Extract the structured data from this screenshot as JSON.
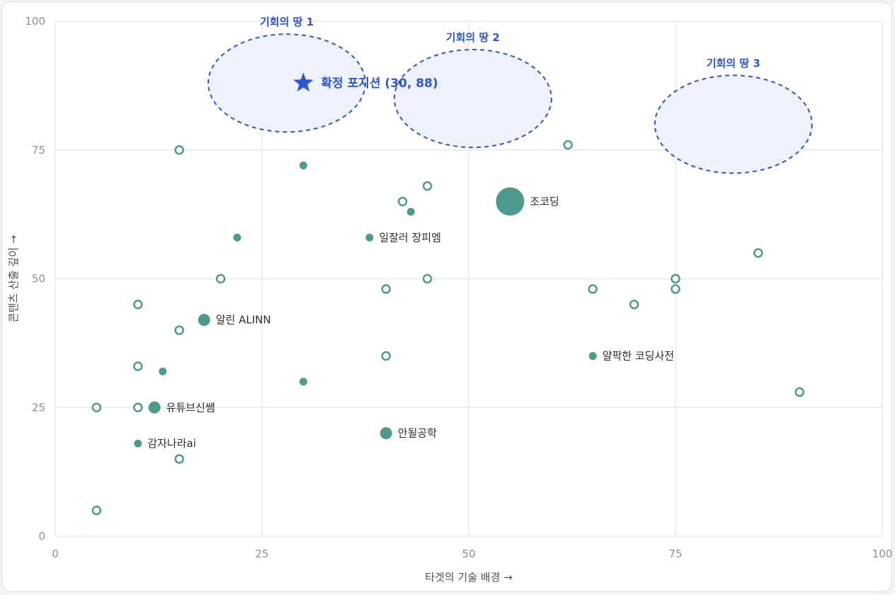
{
  "chart_data": {
    "type": "scatter",
    "title": "",
    "xlabel": "타겟의 기술 배경 →",
    "ylabel": "콘텐츠 산출 깊이 →",
    "xlim": [
      0,
      100
    ],
    "ylim": [
      0,
      100
    ],
    "xticks": [
      "0",
      "25",
      "50",
      "75",
      "100"
    ],
    "yticks": [
      "0",
      "25",
      "50",
      "75",
      "100"
    ],
    "grid": true,
    "colors": {
      "competitor": "#4e9b8d",
      "target": "#2f55d4",
      "opportunity_fill": "#eef2fc"
    },
    "labeled_points": [
      {
        "x": 55,
        "y": 65,
        "size": "large",
        "label": "조코딩"
      },
      {
        "x": 38,
        "y": 58,
        "size": "small",
        "label": "일잘러 장피엠"
      },
      {
        "x": 18,
        "y": 42,
        "size": "medium",
        "label": "알린 ALINN"
      },
      {
        "x": 65,
        "y": 35,
        "size": "small",
        "label": "얄팍한 코딩사전"
      },
      {
        "x": 12,
        "y": 25,
        "size": "medium",
        "label": "유튜브신쌤"
      },
      {
        "x": 40,
        "y": 20,
        "size": "medium",
        "label": "안될공학"
      },
      {
        "x": 10,
        "y": 18,
        "size": "small",
        "label": "감자나라ai"
      }
    ],
    "small_filled_points": [
      {
        "x": 30,
        "y": 72
      },
      {
        "x": 43,
        "y": 63
      },
      {
        "x": 22,
        "y": 58
      },
      {
        "x": 13,
        "y": 32
      },
      {
        "x": 30,
        "y": 30
      }
    ],
    "hollow_points": [
      {
        "x": 15,
        "y": 75
      },
      {
        "x": 62,
        "y": 76
      },
      {
        "x": 45,
        "y": 68
      },
      {
        "x": 42,
        "y": 65
      },
      {
        "x": 85,
        "y": 55
      },
      {
        "x": 20,
        "y": 50
      },
      {
        "x": 45,
        "y": 50
      },
      {
        "x": 75,
        "y": 50
      },
      {
        "x": 40,
        "y": 48
      },
      {
        "x": 65,
        "y": 48
      },
      {
        "x": 75,
        "y": 48
      },
      {
        "x": 10,
        "y": 45
      },
      {
        "x": 70,
        "y": 45
      },
      {
        "x": 15,
        "y": 40
      },
      {
        "x": 40,
        "y": 35
      },
      {
        "x": 10,
        "y": 33
      },
      {
        "x": 90,
        "y": 28
      },
      {
        "x": 5,
        "y": 25
      },
      {
        "x": 10,
        "y": 25
      },
      {
        "x": 15,
        "y": 15
      },
      {
        "x": 5,
        "y": 5
      }
    ],
    "target": {
      "x": 30,
      "y": 88,
      "label": "확정 포지션 (30, 88)"
    },
    "opportunity_zones": [
      {
        "label": "기회의 땅 1",
        "cx": 28,
        "cy": 88,
        "rx": 9.5,
        "ry": 9.5
      },
      {
        "label": "기회의 땅 2",
        "cx": 50.5,
        "cy": 85,
        "rx": 9.5,
        "ry": 9.5
      },
      {
        "label": "기회의 땅 3",
        "cx": 82,
        "cy": 80,
        "rx": 9.5,
        "ry": 9.5
      }
    ]
  }
}
